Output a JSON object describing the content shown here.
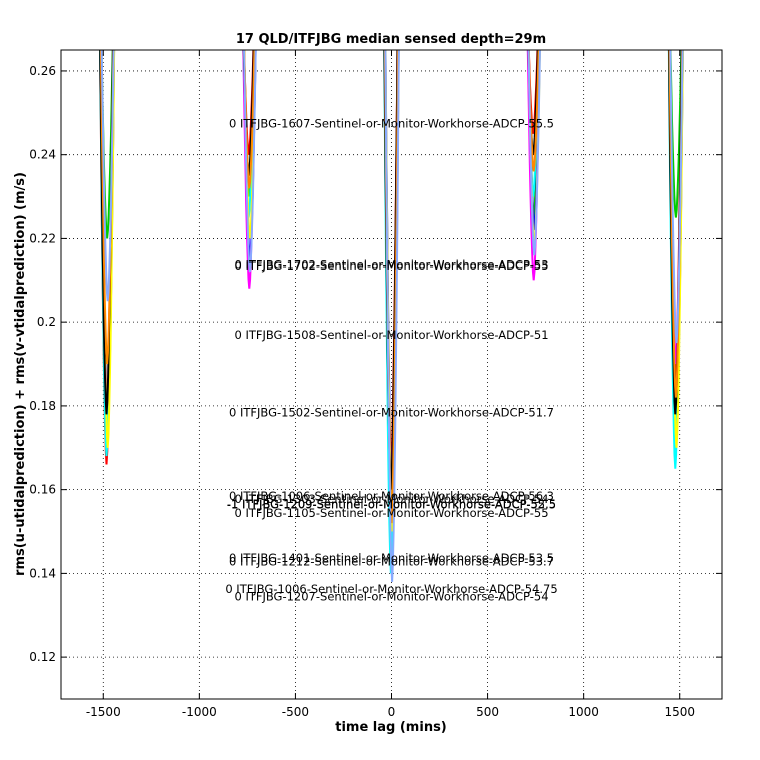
{
  "chart_data": {
    "type": "line",
    "title": "17 QLD/ITFJBG median sensed depth=29m",
    "xlabel": "time lag (mins)",
    "ylabel": "rms(u-utidalprediction) + rms(v-vtidalprediction) (m/s)",
    "xlim": [
      -1720,
      1720
    ],
    "ylim": [
      0.11,
      0.265
    ],
    "x_ticks": [
      -1500,
      -1000,
      -500,
      0,
      500,
      1000,
      1500
    ],
    "y_ticks": [
      0.12,
      0.14,
      0.16,
      0.18,
      0.2,
      0.22,
      0.24,
      0.26
    ],
    "x_tick_labels": [
      "-1500",
      "-1000",
      "-500",
      "0",
      "500",
      "1000",
      "1500"
    ],
    "y_tick_labels": [
      "0.12",
      "0.14",
      "0.16",
      "0.18",
      "0.2",
      "0.22",
      "0.24",
      "0.26"
    ],
    "grid": true,
    "dip_centers": [
      -1480,
      -740,
      0,
      740,
      1480
    ],
    "series": [
      {
        "color": "#ff0000",
        "minima": [
          0.166,
          0.24,
          0.165,
          0.245,
          0.185
        ]
      },
      {
        "color": "#00cc00",
        "minima": [
          0.22,
          0.23,
          0.145,
          0.225,
          0.225
        ]
      },
      {
        "color": "#0000ff",
        "minima": [
          0.175,
          0.215,
          0.155,
          0.222,
          0.175
        ]
      },
      {
        "color": "#00ffff",
        "minima": [
          0.168,
          0.225,
          0.14,
          0.23,
          0.165
        ]
      },
      {
        "color": "#ff00ff",
        "minima": [
          0.18,
          0.208,
          0.16,
          0.21,
          0.19
        ]
      },
      {
        "color": "#ffff00",
        "minima": [
          0.17,
          0.22,
          0.15,
          0.218,
          0.17
        ]
      },
      {
        "color": "#000000",
        "minima": [
          0.178,
          0.235,
          0.16,
          0.24,
          0.178
        ]
      },
      {
        "color": "#ff8800",
        "minima": [
          0.19,
          0.232,
          0.152,
          0.236,
          0.182
        ]
      },
      {
        "color": "#88aaff",
        "minima": [
          0.205,
          0.212,
          0.138,
          0.216,
          0.195
        ]
      }
    ],
    "annotations": [
      {
        "text": "0 ITFJBG-1607-Sentinel-or-Monitor-Workhorse-ADCP-55.5",
        "x": 0,
        "y": 0.2465
      },
      {
        "text": "0 ITFJBG-1702-Sentinel-or-Monitor-Workhorse-ADCP-53",
        "x": 0,
        "y": 0.2128
      },
      {
        "text": "0 ITFJBG-1702-Sentinel-or-Monitor-Workhorse-ADCP-55",
        "x": 0,
        "y": 0.2125
      },
      {
        "text": "0 ITFJBG-1508-Sentinel-or-Monitor-Workhorse-ADCP-51",
        "x": 0,
        "y": 0.196
      },
      {
        "text": "0 ITFJBG-1502-Sentinel-or-Monitor-Workhorse-ADCP-51.7",
        "x": 0,
        "y": 0.1775
      },
      {
        "text": "0 ITFJBG-1006-Sentinel-or-Monitor-Workhorse-ADCP-56.3",
        "x": 0,
        "y": 0.1575
      },
      {
        "text": "0 ITFJBG-1303-Sentinel-or-Monitor-Workhorse-ADCP-54",
        "x": 0,
        "y": 0.1568
      },
      {
        "text": "-1 ITFJBG-1209-Sentinel-or-Monitor-Workhorse-ADCP-52.5",
        "x": 0,
        "y": 0.1556
      },
      {
        "text": "-1 ITFJBG-1209-Sentinel-or-Monitor-Workhorse-ADCP-55.5",
        "x": 0,
        "y": 0.1555
      },
      {
        "text": "0 ITFJBG-1105-Sentinel-or-Monitor-Workhorse-ADCP-55",
        "x": 0,
        "y": 0.1535
      },
      {
        "text": "0 ITFJBG-1401-Sentinel-or-Monitor-Workhorse-ADCP-53.5",
        "x": 0,
        "y": 0.1427
      },
      {
        "text": "0 ITFJBG-1212-Sentinel-or-Monitor-Workhorse-ADCP-53.7",
        "x": 0,
        "y": 0.1419
      },
      {
        "text": "0 ITFJBG-1006-Sentinel-or-Monitor-Workhorse-ADCP-54.75",
        "x": 0,
        "y": 0.1353
      },
      {
        "text": "0 ITFJBG-1207-Sentinel-or-Monitor-Workhorse-ADCP-54",
        "x": 0,
        "y": 0.1335
      }
    ]
  }
}
